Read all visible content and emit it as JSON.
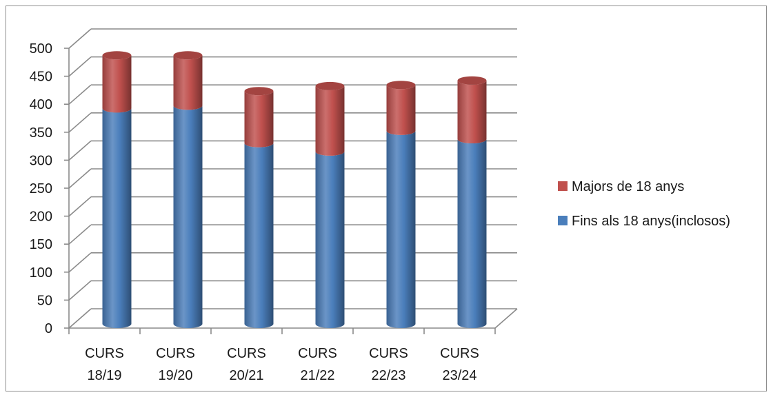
{
  "chart_data": {
    "type": "bar",
    "stacked": true,
    "three_d": true,
    "categories": [
      [
        "CURS",
        "18/19"
      ],
      [
        "CURS",
        "19/20"
      ],
      [
        "CURS",
        "20/21"
      ],
      [
        "CURS",
        "21/22"
      ],
      [
        "CURS",
        "22/23"
      ],
      [
        "CURS",
        "23/24"
      ]
    ],
    "series": [
      {
        "name": "Fins als 18 anys(inclosos)",
        "color": "#4a7ebb",
        "values": [
          385,
          390,
          323,
          308,
          345,
          330
        ]
      },
      {
        "name": "Majors de 18 anys",
        "color": "#c0504d",
        "values": [
          95,
          90,
          93,
          117,
          82,
          105
        ]
      }
    ],
    "legend_order": [
      1,
      0
    ],
    "legend_position": "right",
    "ylim": [
      0,
      500
    ],
    "yticks": [
      0,
      50,
      100,
      150,
      200,
      250,
      300,
      350,
      400,
      450,
      500
    ],
    "grid": true,
    "title": "",
    "xlabel": "",
    "ylabel": ""
  }
}
